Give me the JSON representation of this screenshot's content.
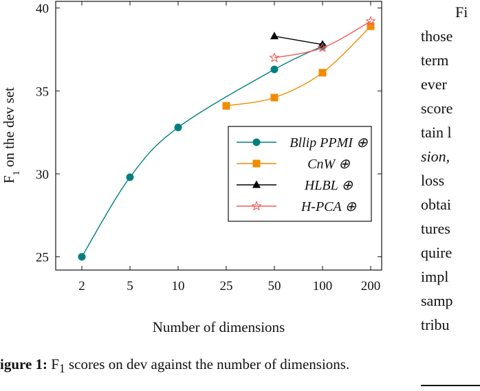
{
  "chart_data": {
    "type": "line",
    "categories": [
      "2",
      "5",
      "10",
      "25",
      "50",
      "100",
      "200"
    ],
    "ylabel_main": "F",
    "ylabel_sub": "1",
    "ylabel_rest": " on the dev set",
    "xlabel": "Number of dimensions",
    "ylim": [
      24.2,
      40.4
    ],
    "yticks": [
      25,
      30,
      35,
      40
    ],
    "grid": false,
    "legend_position": "center-right",
    "series": [
      {
        "name": "Bllip PPMI ⊕",
        "color": "#007f7f",
        "marker": "circle",
        "x": [
          "2",
          "5",
          "10",
          "50",
          "100"
        ],
        "values": [
          25.0,
          29.8,
          32.8,
          36.3,
          37.7
        ]
      },
      {
        "name": "CnW ⊕",
        "color": "#f08c00",
        "marker": "square",
        "x": [
          "25",
          "50",
          "100",
          "200"
        ],
        "values": [
          34.1,
          34.6,
          36.1,
          38.9
        ]
      },
      {
        "name": "HLBL ⊕",
        "color": "#000000",
        "marker": "triangle",
        "x": [
          "50",
          "100"
        ],
        "values": [
          38.3,
          37.8
        ]
      },
      {
        "name": "H-PCA ⊕",
        "color": "#f05a5a",
        "marker": "star",
        "x": [
          "50",
          "100",
          "200"
        ],
        "values": [
          37.0,
          37.6,
          39.2
        ]
      }
    ]
  },
  "caption": {
    "label": "igure 1:",
    "f": "F",
    "sub": "1",
    "text": " scores on dev against the number of dimensions."
  },
  "side_text": {
    "lines": [
      "Fi",
      "those",
      "term",
      "ever",
      "score",
      "tain l",
      "sion,",
      "loss",
      "obtai",
      "tures",
      "quire",
      "impl",
      "samp",
      "tribu"
    ]
  }
}
